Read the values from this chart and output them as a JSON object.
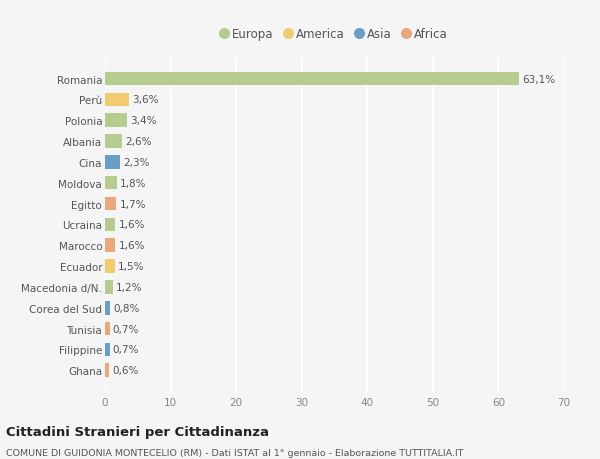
{
  "countries": [
    "Romania",
    "Perù",
    "Polonia",
    "Albania",
    "Cina",
    "Moldova",
    "Egitto",
    "Ucraina",
    "Marocco",
    "Ecuador",
    "Macedonia d/N.",
    "Corea del Sud",
    "Tunisia",
    "Filippine",
    "Ghana"
  ],
  "values": [
    63.1,
    3.6,
    3.4,
    2.6,
    2.3,
    1.8,
    1.7,
    1.6,
    1.6,
    1.5,
    1.2,
    0.8,
    0.7,
    0.7,
    0.6
  ],
  "labels": [
    "63,1%",
    "3,6%",
    "3,4%",
    "2,6%",
    "2,3%",
    "1,8%",
    "1,7%",
    "1,6%",
    "1,6%",
    "1,5%",
    "1,2%",
    "0,8%",
    "0,7%",
    "0,7%",
    "0,6%"
  ],
  "regions": [
    "Europa",
    "America",
    "Europa",
    "Europa",
    "Asia",
    "Europa",
    "Africa",
    "Europa",
    "Africa",
    "America",
    "Europa",
    "Asia",
    "Africa",
    "Asia",
    "Africa"
  ],
  "colors": {
    "Europa": "#b5cc8e",
    "America": "#f0cc6e",
    "Asia": "#6a9ec5",
    "Africa": "#e8a87c"
  },
  "xlim": [
    0,
    70
  ],
  "xticks": [
    0,
    10,
    20,
    30,
    40,
    50,
    60,
    70
  ],
  "title": "Cittadini Stranieri per Cittadinanza",
  "subtitle": "COMUNE DI GUIDONIA MONTECELIO (RM) - Dati ISTAT al 1° gennaio - Elaborazione TUTTITALIA.IT",
  "background_color": "#f5f5f5",
  "bar_height": 0.65,
  "grid_color": "#ffffff",
  "legend_order": [
    "Europa",
    "America",
    "Asia",
    "Africa"
  ]
}
